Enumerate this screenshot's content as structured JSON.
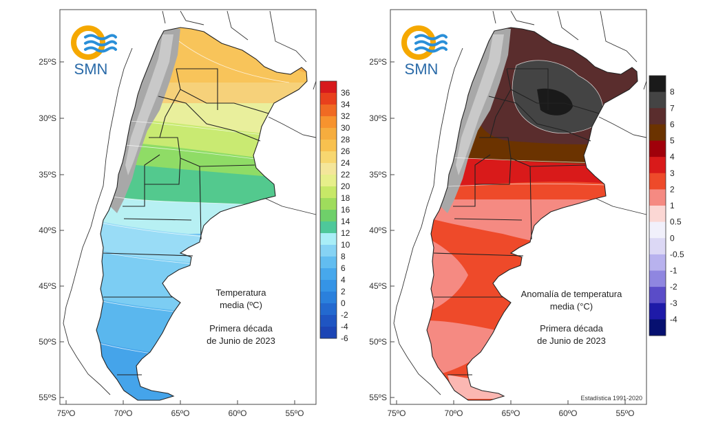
{
  "logo": {
    "text": "SMN",
    "colors": {
      "sun": "#f5a800",
      "waves": "#2a8fd8"
    }
  },
  "axes": {
    "lat_labels": [
      "25ºS",
      "30ºS",
      "35ºS",
      "40ºS",
      "45ºS",
      "50ºS",
      "55ºS"
    ],
    "lon_labels": [
      "75ºO",
      "70ºO",
      "65ºO",
      "60ºO",
      "55ºO"
    ]
  },
  "left_map": {
    "title_line1": "Temperatura",
    "title_line2": "media (ºC)",
    "period_line1": "Primera década",
    "period_line2": "de Junio de 2023",
    "legend": {
      "labels": [
        "36",
        "34",
        "32",
        "30",
        "28",
        "26",
        "24",
        "22",
        "20",
        "18",
        "16",
        "14",
        "12",
        "10",
        "8",
        "6",
        "4",
        "2",
        "0",
        "-2",
        "-4",
        "-6"
      ],
      "colors": [
        "#d7191c",
        "#e8401c",
        "#f06a23",
        "#f7932e",
        "#f6ad3e",
        "#f8c14f",
        "#f7d770",
        "#f4e69a",
        "#e7ef8a",
        "#c7e867",
        "#9fdc5c",
        "#6fd06a",
        "#4ec89a",
        "#a9eef7",
        "#86d3f4",
        "#62bdf0",
        "#47a8ec",
        "#3594e6",
        "#2a80dc",
        "#2369cf",
        "#1f55c2",
        "#1c45b5"
      ]
    }
  },
  "right_map": {
    "title_line1": "Anomalía de temperatura",
    "title_line2": "media (°C)",
    "period_line1": "Primera década",
    "period_line2": "de Junio de 2023",
    "footnote": "Estadística 1991-2020",
    "legend": {
      "labels": [
        "8",
        "7",
        "6",
        "5",
        "4",
        "3",
        "2",
        "1",
        "0.5",
        "0",
        "-0.5",
        "-1",
        "-2",
        "-3",
        "-4"
      ],
      "colors": [
        "#1a1a1a",
        "#444444",
        "#5a2d2d",
        "#6b3300",
        "#a0000a",
        "#d91a1a",
        "#ee4a2a",
        "#f58a82",
        "#fbd7d4",
        "#f1f0fb",
        "#dcd8f5",
        "#b8b2ee",
        "#8f86e0",
        "#5a4cc8",
        "#1e1aa8",
        "#061070"
      ]
    }
  }
}
